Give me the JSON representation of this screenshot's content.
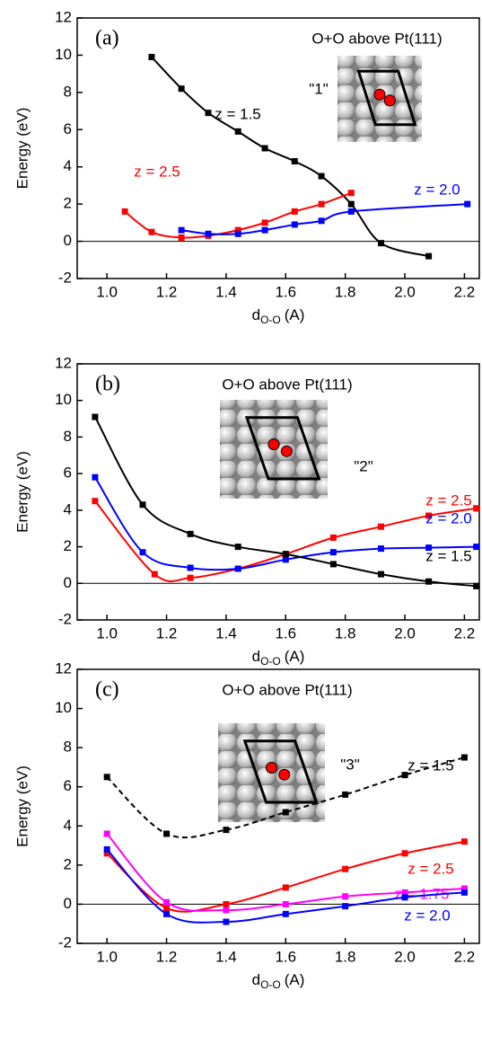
{
  "chart_data": [
    {
      "type": "line",
      "panel_label": "(a)",
      "title": "O+O above Pt(111)",
      "site_label": "\"1\"",
      "y_label": "Energy (eV)",
      "x_label": "d",
      "x_label_sub": "O-O",
      "x_label_unit": "(A)",
      "xlim": [
        0.9,
        2.25
      ],
      "ylim": [
        -2,
        12
      ],
      "zero_line": true,
      "xticks": [
        {
          "value": 1.0,
          "label": "1.0"
        },
        {
          "value": 1.2,
          "label": "1.2"
        },
        {
          "value": 1.4,
          "label": "1.4"
        },
        {
          "value": 1.6,
          "label": "1.6"
        },
        {
          "value": 1.8,
          "label": "1.8"
        },
        {
          "value": 2.0,
          "label": "2.0"
        },
        {
          "value": 2.2,
          "label": "2.2"
        }
      ],
      "yticks": [
        -2,
        0,
        2,
        4,
        6,
        8,
        10,
        12
      ],
      "series": [
        {
          "name": "z = 1.5",
          "color": "#000000",
          "line_style": "solid",
          "x": [
            1.15,
            1.25,
            1.34,
            1.44,
            1.53,
            1.63,
            1.72,
            1.82,
            1.92,
            2.08
          ],
          "values": [
            9.9,
            8.2,
            6.9,
            5.9,
            5.0,
            4.3,
            3.5,
            2.0,
            -0.1,
            -0.8
          ]
        },
        {
          "name": "z = 2.5",
          "color": "#ff0000",
          "line_style": "solid",
          "x": [
            1.06,
            1.15,
            1.25,
            1.34,
            1.44,
            1.53,
            1.63,
            1.72,
            1.82
          ],
          "values": [
            1.6,
            0.5,
            0.2,
            0.3,
            0.6,
            1.0,
            1.6,
            2.0,
            2.6
          ]
        },
        {
          "name": "z = 2.0",
          "color": "#0000ff",
          "line_style": "solid",
          "x": [
            1.25,
            1.34,
            1.44,
            1.53,
            1.63,
            1.72,
            1.82,
            2.21
          ],
          "values": [
            0.6,
            0.4,
            0.4,
            0.6,
            0.9,
            1.1,
            1.6,
            2.0
          ]
        }
      ]
    },
    {
      "type": "line",
      "panel_label": "(b)",
      "title": "O+O above Pt(111)",
      "site_label": "\"2\"",
      "y_label": "Energy (eV)",
      "x_label": "d",
      "x_label_sub": "O-O",
      "x_label_unit": "(A)",
      "xlim": [
        0.9,
        2.25
      ],
      "ylim": [
        -2,
        12
      ],
      "zero_line": true,
      "xticks": [
        {
          "value": 1.0,
          "label": "1.0"
        },
        {
          "value": 1.2,
          "label": "1.2"
        },
        {
          "value": 1.4,
          "label": "1.4"
        },
        {
          "value": 1.6,
          "label": "1.6"
        },
        {
          "value": 1.8,
          "label": "1.8"
        },
        {
          "value": 2.0,
          "label": "2.0"
        },
        {
          "value": 2.2,
          "label": "2.2"
        }
      ],
      "yticks": [
        -2,
        0,
        2,
        4,
        6,
        8,
        10,
        12
      ],
      "series": [
        {
          "name": "z = 2.5",
          "color": "#ff0000",
          "line_style": "solid",
          "x": [
            0.96,
            1.16,
            1.28,
            1.44,
            1.6,
            1.76,
            1.92,
            2.08,
            2.24
          ],
          "values": [
            4.5,
            0.5,
            0.3,
            0.8,
            1.6,
            2.5,
            3.1,
            3.7,
            4.1
          ]
        },
        {
          "name": "z = 2.0",
          "color": "#0000ff",
          "line_style": "solid",
          "x": [
            0.96,
            1.12,
            1.28,
            1.44,
            1.6,
            1.76,
            1.92,
            2.08,
            2.24
          ],
          "values": [
            5.8,
            1.7,
            0.85,
            0.8,
            1.3,
            1.7,
            1.9,
            1.95,
            2.0
          ]
        },
        {
          "name": "z = 1.5",
          "color": "#000000",
          "line_style": "solid",
          "x": [
            0.96,
            1.12,
            1.28,
            1.44,
            1.6,
            1.76,
            1.92,
            2.08,
            2.24
          ],
          "values": [
            9.1,
            4.3,
            2.7,
            2.0,
            1.6,
            1.05,
            0.5,
            0.1,
            -0.15
          ]
        }
      ]
    },
    {
      "type": "line",
      "panel_label": "(c)",
      "title": "O+O above Pt(111)",
      "site_label": "\"3\"",
      "y_label": "Energy (eV)",
      "x_label": "d",
      "x_label_sub": "O-O",
      "x_label_unit": "(A)",
      "xlim": [
        0.9,
        2.25
      ],
      "ylim": [
        -2,
        12
      ],
      "zero_line": true,
      "xticks": [
        {
          "value": 1.0,
          "label": "1.0"
        },
        {
          "value": 1.2,
          "label": "1.2"
        },
        {
          "value": 1.4,
          "label": "1.4"
        },
        {
          "value": 1.6,
          "label": "1.6"
        },
        {
          "value": 1.8,
          "label": "1.8"
        },
        {
          "value": 2.0,
          "label": "2.0"
        },
        {
          "value": 2.2,
          "label": "2.2"
        }
      ],
      "yticks": [
        -2,
        0,
        2,
        4,
        6,
        8,
        10,
        12
      ],
      "series": [
        {
          "name": "z = 1.5",
          "color": "#000000",
          "line_style": "dashed",
          "x": [
            1.0,
            1.2,
            1.4,
            1.6,
            1.8,
            2.0,
            2.2
          ],
          "values": [
            6.5,
            3.6,
            3.8,
            4.7,
            5.6,
            6.6,
            7.5
          ]
        },
        {
          "name": "z = 2.5",
          "color": "#ff0000",
          "line_style": "solid",
          "x": [
            1.0,
            1.2,
            1.4,
            1.6,
            1.8,
            2.0,
            2.2
          ],
          "values": [
            2.6,
            -0.2,
            0.0,
            0.85,
            1.8,
            2.6,
            3.2
          ]
        },
        {
          "name": "z = 1.75",
          "color": "#ff00ff",
          "line_style": "solid",
          "x": [
            1.0,
            1.2,
            1.4,
            1.6,
            1.8,
            2.0,
            2.2
          ],
          "values": [
            3.6,
            0.1,
            -0.3,
            0.0,
            0.4,
            0.6,
            0.8
          ]
        },
        {
          "name": "z = 2.0",
          "color": "#0000ff",
          "line_style": "solid",
          "x": [
            1.0,
            1.2,
            1.4,
            1.6,
            1.8,
            2.0,
            2.2
          ],
          "values": [
            2.8,
            -0.5,
            -0.9,
            -0.5,
            -0.1,
            0.35,
            0.6
          ]
        }
      ]
    }
  ]
}
